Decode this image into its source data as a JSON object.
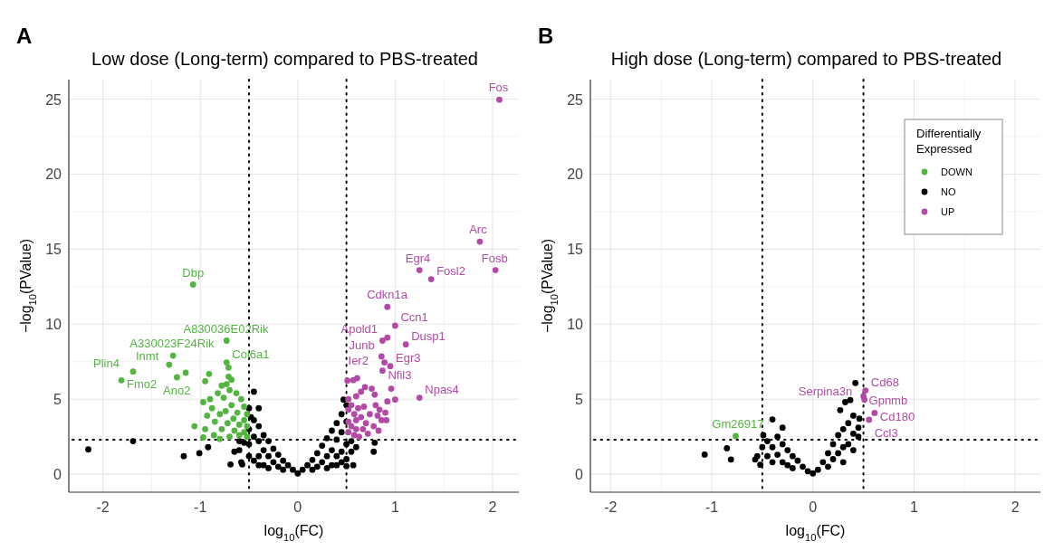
{
  "chart_data": [
    {
      "type": "scatter",
      "title": "Low dose (Long-term) compared to PBS-treated",
      "xlabel": "log$_{10}$(FC)",
      "ylabel": "−log$_{10}$(PValue)",
      "xlim": [
        -2.35,
        2.27
      ],
      "ylim": [
        -1.2,
        26.3
      ],
      "xticks": [
        -2,
        -1,
        0,
        1,
        2
      ],
      "yticks": [
        0,
        5,
        10,
        15,
        20,
        25
      ],
      "grid": true,
      "legend": false,
      "marker": "circle",
      "series": [
        {
          "color": "#000000",
          "x": [
            -0.5,
            -0.48,
            -0.5,
            -0.5,
            -0.5,
            -0.45,
            -0.45,
            -0.45,
            -0.4,
            -0.4,
            -0.4,
            -0.4,
            -0.35,
            -0.35,
            -0.35,
            -0.3,
            -0.3,
            -0.3,
            -0.25,
            -0.25,
            -0.2,
            -0.2,
            -0.15,
            -0.15,
            -0.1,
            -0.05,
            0,
            0.05,
            0.1,
            0.15,
            0.15,
            0.2,
            0.2,
            0.25,
            0.25,
            0.3,
            0.3,
            0.3,
            0.35,
            0.35,
            0.35,
            0.4,
            0.4,
            0.4,
            0.4,
            0.45,
            0.45,
            0.45,
            0.45,
            0.5,
            0.5,
            0.5,
            0.5,
            0.55,
            0.55,
            0.6,
            -0.55,
            -0.6,
            -0.6,
            -0.65,
            -0.58,
            -2.15,
            -1.69,
            -1.17,
            -1.01,
            -0.92,
            -0.69,
            -0.57,
            -0.45,
            -0.4,
            0.5,
            0.57,
            0.79,
            0.78,
            0.47
          ],
          "values": [
            4.4,
            3.8,
            3.0,
            2.0,
            1.2,
            0.9,
            2.5,
            3.6,
            3.2,
            2.2,
            1.2,
            0.6,
            2.6,
            1.6,
            0.6,
            2.2,
            1.2,
            0.4,
            1.7,
            0.8,
            1.3,
            0.5,
            0.9,
            0.3,
            0.6,
            0.3,
            0.05,
            0.3,
            0.6,
            0.3,
            0.95,
            1.4,
            0.5,
            1.9,
            0.8,
            2.4,
            1.2,
            0.4,
            2.9,
            1.6,
            0.6,
            3.4,
            2.3,
            1.2,
            0.6,
            4.0,
            2.8,
            1.5,
            0.8,
            4.6,
            3.5,
            2.0,
            1.0,
            2.2,
            1.5,
            1.8,
            2.1,
            2.2,
            1.6,
            1.5,
            0.8,
            1.65,
            2.2,
            1.2,
            1.4,
            1.8,
            0.65,
            0.65,
            5.5,
            4.4,
            0.54,
            0.6,
            2.1,
            1.5,
            4.97
          ]
        },
        {
          "color": "#52b540",
          "x": [
            -1.075,
            -0.73,
            -1.28,
            -0.73,
            -0.71,
            -1.32,
            -1.69,
            -1.81,
            -1.24,
            -1.15,
            -0.91,
            -0.95,
            -1.06,
            -0.97,
            -0.97,
            -0.8,
            -0.52,
            -0.52,
            -0.52,
            -0.55,
            -0.55,
            -0.55,
            -0.58,
            -0.6,
            -0.6,
            -0.62,
            -0.63,
            -0.65,
            -0.66,
            -0.68,
            -0.7,
            -0.7,
            -0.72,
            -0.74,
            -0.76,
            -0.78,
            -0.8,
            -0.82,
            -0.85,
            -0.86,
            -0.88,
            -0.9,
            -0.93,
            -0.95,
            -0.73,
            -0.68,
            -0.71,
            -0.78
          ],
          "values": [
            12.64,
            8.9,
            7.9,
            7.45,
            7.1,
            7.3,
            6.84,
            6.26,
            6.46,
            6.76,
            6.68,
            6.2,
            3.2,
            4.8,
            2.45,
            2.35,
            2.5,
            3.2,
            4.0,
            2.8,
            3.6,
            4.5,
            5.0,
            2.6,
            3.3,
            4.1,
            5.4,
            2.9,
            3.7,
            4.6,
            5.6,
            2.5,
            3.4,
            4.2,
            5.1,
            3.0,
            4.0,
            5.4,
            3.5,
            2.6,
            4.4,
            5.0,
            3.9,
            3.0,
            6.0,
            6.3,
            6.5,
            5.9
          ]
        },
        {
          "color": "#b24aa6",
          "x": [
            2.07,
            1.87,
            2.03,
            1.25,
            1.37,
            0.92,
            1.0,
            0.92,
            0.87,
            1.11,
            0.86,
            0.95,
            0.89,
            0.87,
            1.25,
            0.52,
            0.52,
            0.52,
            0.52,
            0.55,
            0.55,
            0.58,
            0.58,
            0.6,
            0.6,
            0.6,
            0.62,
            0.63,
            0.65,
            0.65,
            0.67,
            0.68,
            0.7,
            0.72,
            0.74,
            0.76,
            0.78,
            0.8,
            0.82,
            0.83,
            0.86,
            0.84,
            0.9,
            0.91,
            0.92,
            1.0,
            0.96,
            0.51,
            0.57,
            0.61,
            0.69,
            0.79
          ],
          "values": [
            24.96,
            15.5,
            13.6,
            13.6,
            13.0,
            11.15,
            9.9,
            9.1,
            8.9,
            8.65,
            7.85,
            7.2,
            7.45,
            6.9,
            5.1,
            5.0,
            4.3,
            3.5,
            2.8,
            4.6,
            3.2,
            4.0,
            2.6,
            5.2,
            3.6,
            3.0,
            4.4,
            2.5,
            5.5,
            3.8,
            3.0,
            4.5,
            3.4,
            2.7,
            4.0,
            5.7,
            3.2,
            4.6,
            3.9,
            2.9,
            3.6,
            4.3,
            4.1,
            3.6,
            4.85,
            4.97,
            5.7,
            6.24,
            6.27,
            6.4,
            5.8,
            5.3
          ]
        }
      ],
      "ref_lines": [
        {
          "axis": "x",
          "value": -0.5,
          "color": "#000000",
          "line_style": "dotted"
        },
        {
          "axis": "x",
          "value": 0.5,
          "color": "#000000",
          "line_style": "dotted"
        },
        {
          "axis": "y",
          "value": 2.3,
          "color": "#000000",
          "line_style": "dotted"
        }
      ],
      "annotations": [
        "A",
        {
          "text": "Fos",
          "x": 2.07,
          "y": 24.96
        },
        {
          "text": "Arc",
          "x": 1.87,
          "y": 15.5
        },
        {
          "text": "Fosb",
          "x": 2.03,
          "y": 13.6
        },
        {
          "text": "Egr4",
          "x": 1.25,
          "y": 13.6
        },
        {
          "text": "Fosl2",
          "x": 1.37,
          "y": 13.0
        },
        {
          "text": "Cdkn1a",
          "x": 0.92,
          "y": 11.15
        },
        {
          "text": "Ccn1",
          "x": 1.0,
          "y": 9.9
        },
        {
          "text": "Apold1",
          "x": 0.92,
          "y": 9.1
        },
        {
          "text": "Junb",
          "x": 0.87,
          "y": 8.9
        },
        {
          "text": "Dusp1",
          "x": 1.11,
          "y": 8.65
        },
        {
          "text": "Ier2",
          "x": 0.86,
          "y": 7.85
        },
        {
          "text": "Egr3",
          "x": 0.95,
          "y": 7.2
        },
        {
          "text": "Nfil3",
          "x": 0.87,
          "y": 6.9
        },
        {
          "text": "Npas4",
          "x": 1.25,
          "y": 5.1
        },
        {
          "text": "Dbp",
          "x": -1.075,
          "y": 12.64
        },
        {
          "text": "A830036E02Rik",
          "x": -0.73,
          "y": 8.9
        },
        {
          "text": "A330023F24Rik",
          "x": -1.28,
          "y": 7.9
        },
        {
          "text": "Col6a1",
          "x": -0.73,
          "y": 7.45
        },
        {
          "text": "Inmt",
          "x": -1.32,
          "y": 7.3
        },
        {
          "text": "Plin4",
          "x": -1.69,
          "y": 6.84
        },
        {
          "text": "Fmo2",
          "x": -1.81,
          "y": 6.26
        },
        {
          "text": "Ano2",
          "x": -1.24,
          "y": 6.46
        }
      ]
    },
    {
      "type": "scatter",
      "title": "High dose (Long-term) compared to PBS-treated",
      "xlabel": "log$_{10}$(FC)",
      "ylabel": "−log$_{10}$(PValue)",
      "xlim": [
        -2.2,
        2.25
      ],
      "ylim": [
        -1.2,
        26.3
      ],
      "xticks": [
        -2,
        -1,
        0,
        1,
        2
      ],
      "yticks": [
        0,
        5,
        10,
        15,
        20,
        25
      ],
      "grid": true,
      "legend": "top right",
      "legend_title": "Differentially Expressed",
      "marker": "circle",
      "series": [
        {
          "name": "DOWN",
          "color": "#52b540",
          "x": [
            -0.763
          ],
          "values": [
            2.54
          ]
        },
        {
          "name": "NO",
          "color": "#000000",
          "x": [
            -1.07,
            -0.85,
            -0.81,
            -0.57,
            -0.52,
            -0.4,
            -0.3,
            -0.49,
            0.42,
            0.37,
            0.32,
            0.46,
            0.27,
            -0.5,
            -0.45,
            -0.45,
            -0.4,
            -0.4,
            -0.35,
            -0.35,
            -0.3,
            -0.3,
            -0.25,
            -0.25,
            -0.2,
            -0.2,
            -0.15,
            -0.1,
            -0.05,
            0,
            0.05,
            0.1,
            0.15,
            0.15,
            0.2,
            0.2,
            0.25,
            0.25,
            0.3,
            0.3,
            0.3,
            0.35,
            0.35,
            0.4,
            0.4,
            0.4,
            0.45,
            0.45,
            -0.55
          ],
          "values": [
            1.31,
            1.73,
            0.98,
            0.98,
            0.63,
            3.65,
            3.1,
            2.6,
            6.08,
            4.94,
            4.8,
            3.7,
            4.27,
            1.8,
            1.2,
            2.2,
            1.8,
            0.8,
            2.5,
            1.3,
            2.0,
            0.8,
            1.6,
            0.6,
            1.2,
            0.4,
            0.9,
            0.5,
            0.2,
            0.05,
            0.3,
            0.8,
            1.4,
            0.5,
            2.0,
            1.0,
            2.6,
            1.4,
            3.0,
            1.8,
            0.8,
            3.4,
            2.0,
            3.9,
            2.7,
            1.6,
            3.1,
            2.5,
            1.2
          ]
        },
        {
          "name": "UP",
          "color": "#b24aa6",
          "x": [
            0.52,
            0.5,
            0.51,
            0.61,
            0.555
          ],
          "values": [
            5.58,
            5.2,
            4.96,
            4.08,
            3.63
          ]
        }
      ],
      "ref_lines": [
        {
          "axis": "x",
          "value": -0.5,
          "color": "#000000",
          "line_style": "dotted"
        },
        {
          "axis": "x",
          "value": 0.5,
          "color": "#000000",
          "line_style": "dotted"
        },
        {
          "axis": "y",
          "value": 2.3,
          "color": "#000000",
          "line_style": "dotted"
        }
      ],
      "annotations": [
        "B",
        {
          "text": "Gm26917",
          "x": -0.763,
          "y": 2.54
        },
        {
          "text": "Cd68",
          "x": 0.52,
          "y": 5.58
        },
        {
          "text": "Gpnmb",
          "x": 0.5,
          "y": 5.2
        },
        {
          "text": "Serpina3n",
          "x": 0.51,
          "y": 4.96
        },
        {
          "text": "Cd180",
          "x": 0.61,
          "y": 4.08
        },
        {
          "text": "Ccl3",
          "x": 0.555,
          "y": 3.63
        }
      ]
    }
  ]
}
